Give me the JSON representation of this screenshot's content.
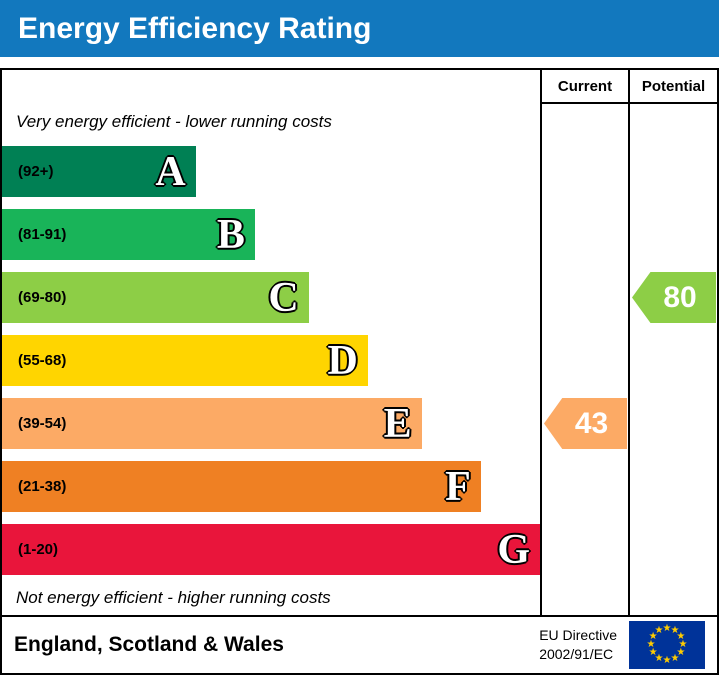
{
  "title": "Energy Efficiency Rating",
  "chart_data": {
    "type": "bar",
    "title": "Energy Efficiency Rating",
    "top_note": "Very energy efficient - lower running costs",
    "bottom_note": "Not energy efficient - higher running costs",
    "bands": [
      {
        "letter": "A",
        "range": "(92+)",
        "color": "#008054",
        "length_pct": 36
      },
      {
        "letter": "B",
        "range": "(81-91)",
        "color": "#19b459",
        "length_pct": 47
      },
      {
        "letter": "C",
        "range": "(69-80)",
        "color": "#8dce46",
        "length_pct": 57
      },
      {
        "letter": "D",
        "range": "(55-68)",
        "color": "#ffd500",
        "length_pct": 68
      },
      {
        "letter": "E",
        "range": "(39-54)",
        "color": "#fcaa65",
        "length_pct": 78
      },
      {
        "letter": "F",
        "range": "(21-38)",
        "color": "#ef8023",
        "length_pct": 89
      },
      {
        "letter": "G",
        "range": "(1-20)",
        "color": "#e9153b",
        "length_pct": 100
      }
    ],
    "current": {
      "label": "Current",
      "value": 43,
      "band": "E",
      "color": "#fcaa65"
    },
    "potential": {
      "label": "Potential",
      "value": 80,
      "band": "C",
      "color": "#8dce46"
    }
  },
  "footer": {
    "region": "England, Scotland & Wales",
    "directive_line1": "EU Directive",
    "directive_line2": "2002/91/EC"
  },
  "colors": {
    "title_bg": "#1278be",
    "title_text": "#ffffff",
    "flag_bg": "#003399",
    "flag_stars": "#ffcc00"
  }
}
